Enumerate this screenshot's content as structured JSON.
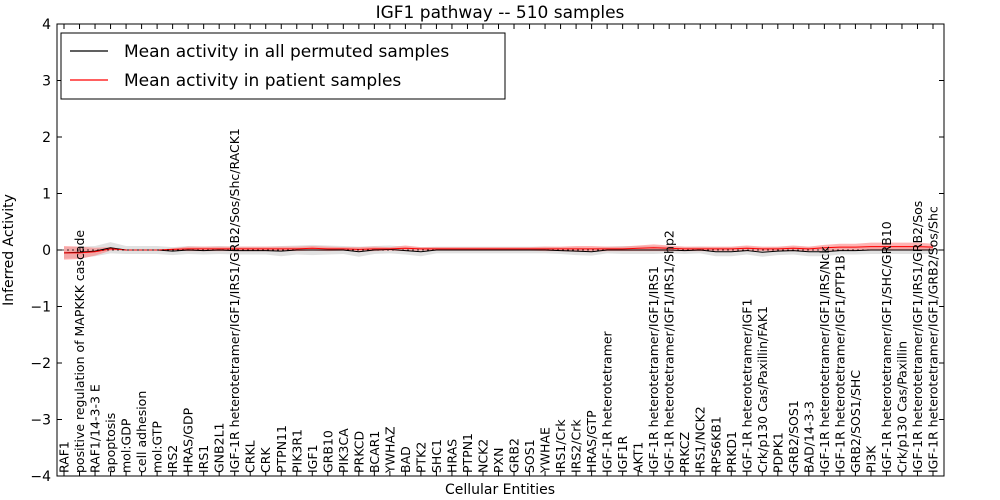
{
  "chart_data": {
    "type": "line",
    "title": "IGF1 pathway -- 510 samples",
    "xlabel": "Cellular Entities",
    "ylabel": "Inferred Activity",
    "ylim": [
      -4,
      4
    ],
    "yticks": [
      -4,
      -3,
      -2,
      -1,
      0,
      1,
      2,
      3,
      4
    ],
    "ytick_labels": [
      "−4",
      "−3",
      "−2",
      "−1",
      "0",
      "1",
      "2",
      "3",
      "4"
    ],
    "grid": false,
    "legend_position": "top-left",
    "categories": [
      "RAF1",
      "positive regulation of MAPKKK cascade",
      "RAF1/14-3-3 E",
      "apoptosis",
      "mol:GDP",
      "cell adhesion",
      "mol:GTP",
      "IRS2",
      "HRAS/GDP",
      "IRS1",
      "GNB2L1",
      "IGF-1R heterotetramer/IGF1/IRS1/GRB2/Sos/Shc/RACK1",
      "CRKL",
      "CRK",
      "PTPN11",
      "PIK3R1",
      "IGF1",
      "GRB10",
      "PIK3CA",
      "PRKCD",
      "BCAR1",
      "YWHAZ",
      "BAD",
      "PTK2",
      "SHC1",
      "HRAS",
      "PTPN1",
      "NCK2",
      "PXN",
      "GRB2",
      "SOS1",
      "YWHAE",
      "IRS1/Crk",
      "IRS2/Crk",
      "HRAS/GTP",
      "IGF-1R heterotetramer",
      "IGF1R",
      "AKT1",
      "IGF-1R heterotetramer/IGF1/IRS1",
      "IGF-1R heterotetramer/IGF1/IRS1/Shp2",
      "PRKCZ",
      "IRS1/NCK2",
      "RPS6KB1",
      "PRKD1",
      "IGF-1R heterotetramer/IGF1",
      "Crk/p130 Cas/Paxillin/FAK1",
      "PDPK1",
      "GRB2/SOS1",
      "BAD/14-3-3",
      "IGF-1R heterotetramer/IGF1/IRS/Nck",
      "IGF-1R heterotetramer/IGF1/PTP1B",
      "GRB2/SOS1/SHC",
      "PI3K",
      "IGF-1R heterotetramer/IGF1/SHC/GRB10",
      "Crk/p130 Cas/Paxillin",
      "IGF-1R heterotetramer/IGF1/IRS1/GRB2/Sos",
      "IGF-1R heterotetramer/IGF1/GRB2/Sos/Shc"
    ],
    "series": [
      {
        "name": "Mean activity in all permuted samples",
        "color": "#000000",
        "band_color": "#c8c8c8",
        "values": [
          -0.05,
          -0.04,
          -0.02,
          0.04,
          0.0,
          0.0,
          0.0,
          -0.02,
          0.0,
          -0.01,
          0.0,
          -0.01,
          -0.01,
          -0.01,
          -0.02,
          0.0,
          0.0,
          0.0,
          0.0,
          -0.03,
          0.0,
          0.01,
          -0.01,
          -0.03,
          0.0,
          0.0,
          0.0,
          0.0,
          0.0,
          0.0,
          0.0,
          0.0,
          -0.01,
          -0.02,
          -0.03,
          0.0,
          0.0,
          0.0,
          0.0,
          0.0,
          -0.01,
          0.0,
          -0.03,
          -0.03,
          -0.01,
          -0.04,
          -0.02,
          -0.01,
          -0.03,
          -0.03,
          -0.01,
          -0.01,
          0.0,
          0.0,
          0.0,
          0.0,
          0.0
        ],
        "band": [
          0.1,
          0.1,
          0.09,
          0.1,
          0.07,
          0.07,
          0.07,
          0.07,
          0.07,
          0.07,
          0.07,
          0.07,
          0.07,
          0.07,
          0.09,
          0.08,
          0.09,
          0.08,
          0.07,
          0.09,
          0.07,
          0.07,
          0.07,
          0.08,
          0.06,
          0.06,
          0.06,
          0.06,
          0.06,
          0.06,
          0.06,
          0.06,
          0.06,
          0.07,
          0.07,
          0.06,
          0.07,
          0.07,
          0.07,
          0.06,
          0.06,
          0.06,
          0.08,
          0.08,
          0.07,
          0.08,
          0.07,
          0.07,
          0.08,
          0.08,
          0.07,
          0.07,
          0.07,
          0.07,
          0.07,
          0.07,
          0.07
        ]
      },
      {
        "name": "Mean activity in patient samples",
        "color": "#ff0000",
        "band_color": "#ff8080",
        "values": [
          -0.05,
          -0.05,
          -0.03,
          0.02,
          0.0,
          0.0,
          0.0,
          0.01,
          0.02,
          0.02,
          0.02,
          0.02,
          0.02,
          0.02,
          0.02,
          0.02,
          0.03,
          0.02,
          0.02,
          0.01,
          0.02,
          0.02,
          0.03,
          0.02,
          0.02,
          0.02,
          0.02,
          0.02,
          0.02,
          0.02,
          0.02,
          0.02,
          0.02,
          0.02,
          0.02,
          0.02,
          0.02,
          0.03,
          0.04,
          0.03,
          0.02,
          0.02,
          0.02,
          0.02,
          0.03,
          0.02,
          0.02,
          0.03,
          0.02,
          0.04,
          0.05,
          0.05,
          0.06,
          0.06,
          0.06,
          0.06,
          0.05
        ],
        "band": [
          0.12,
          0.11,
          0.07,
          0.03,
          0.0,
          0.0,
          0.0,
          0.02,
          0.04,
          0.04,
          0.04,
          0.04,
          0.04,
          0.04,
          0.04,
          0.04,
          0.04,
          0.04,
          0.03,
          0.04,
          0.04,
          0.03,
          0.05,
          0.03,
          0.03,
          0.03,
          0.03,
          0.03,
          0.03,
          0.03,
          0.03,
          0.04,
          0.04,
          0.05,
          0.05,
          0.04,
          0.04,
          0.05,
          0.06,
          0.05,
          0.04,
          0.04,
          0.04,
          0.04,
          0.05,
          0.04,
          0.04,
          0.05,
          0.04,
          0.05,
          0.06,
          0.06,
          0.07,
          0.07,
          0.07,
          0.07,
          0.06
        ]
      }
    ]
  }
}
